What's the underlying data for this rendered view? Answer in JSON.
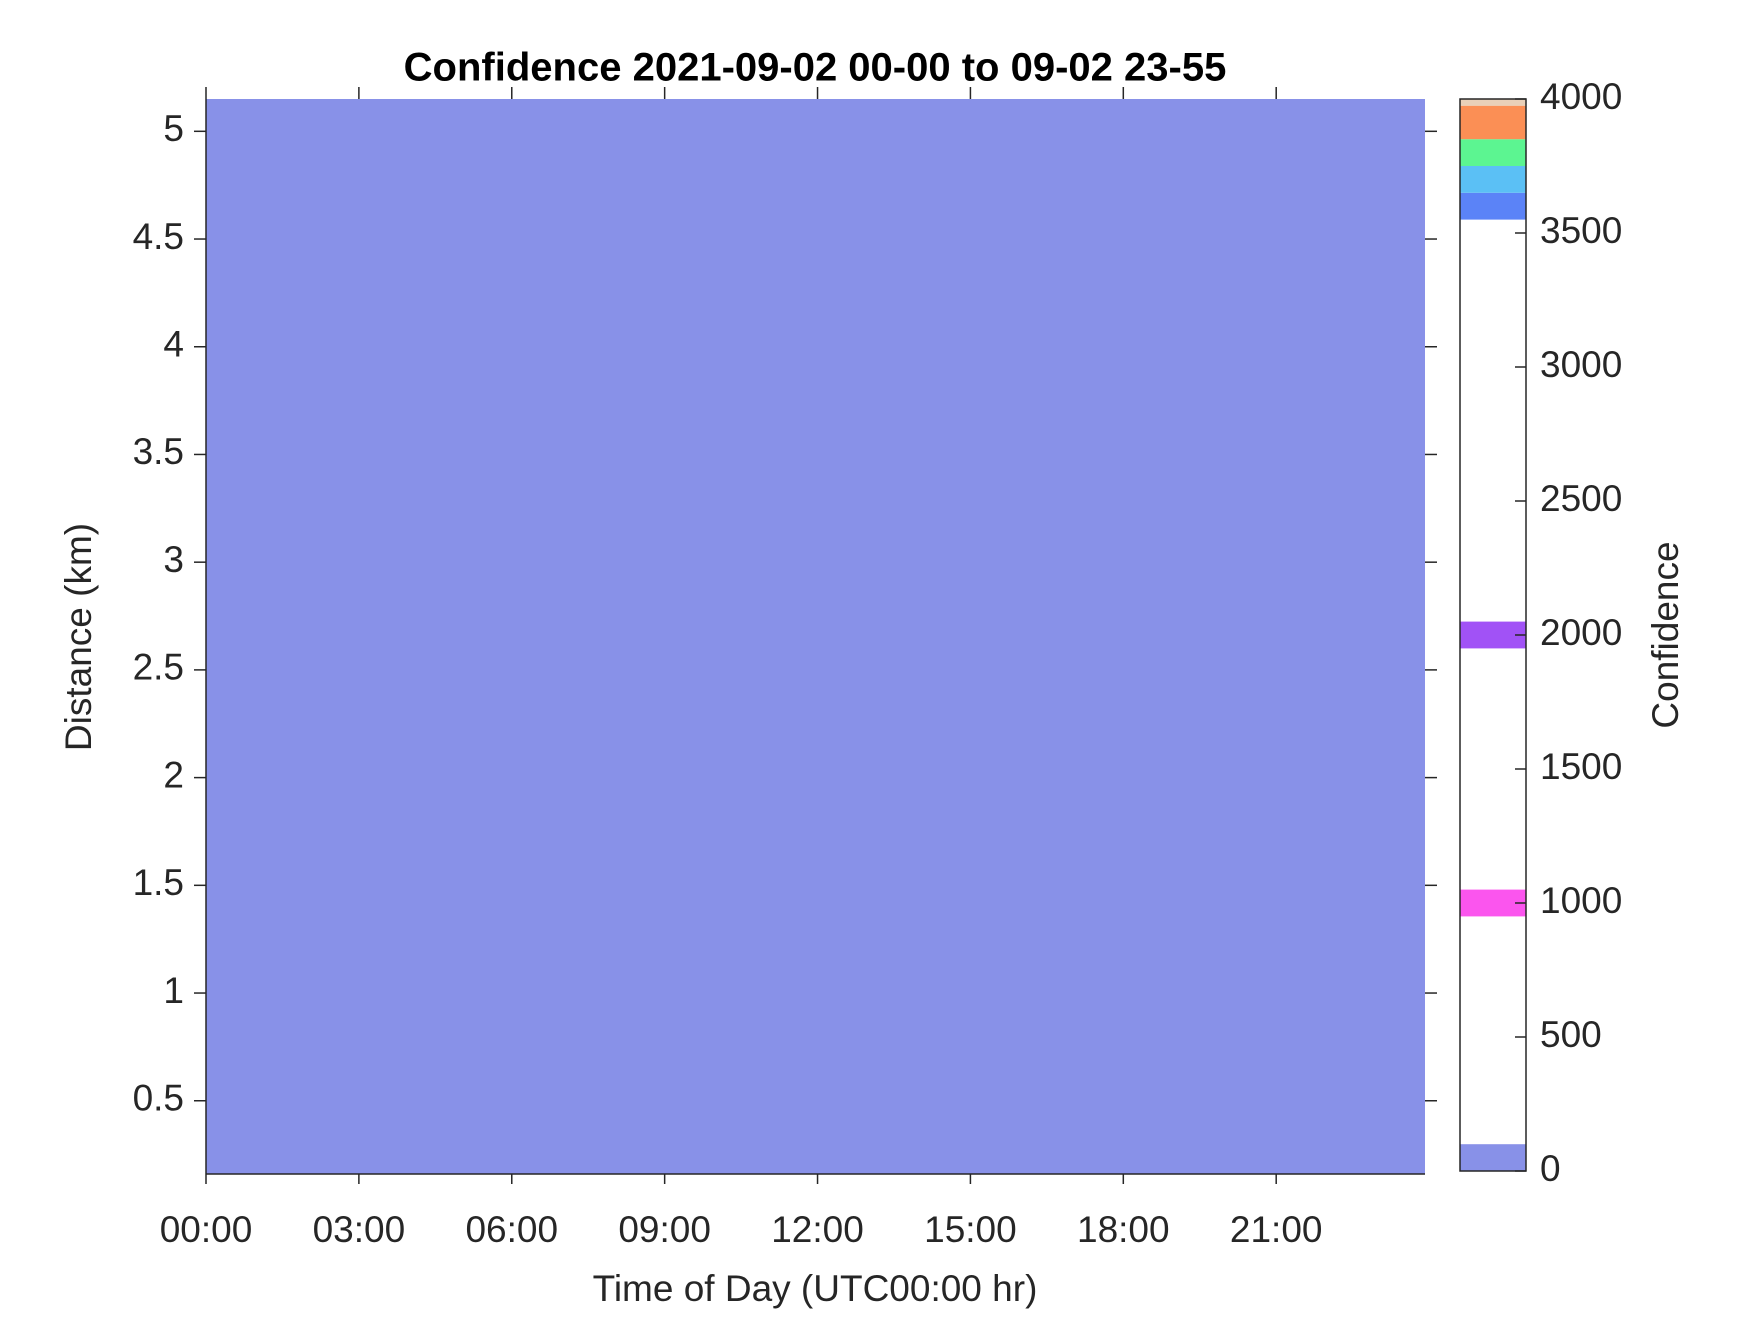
{
  "chart_data": {
    "type": "heatmap",
    "title": "Confidence 2021-09-02 00-00 to 09-02 23-55",
    "x_label": "Time of Day (UTC00:00 hr)",
    "y_label": "Distance (km)",
    "xlim": [
      0,
      23.92
    ],
    "ylim": [
      0.16,
      5.15
    ],
    "xticks": [
      {
        "value": 0,
        "label": "00:00"
      },
      {
        "value": 3,
        "label": "03:00"
      },
      {
        "value": 6,
        "label": "06:00"
      },
      {
        "value": 9,
        "label": "09:00"
      },
      {
        "value": 12,
        "label": "12:00"
      },
      {
        "value": 15,
        "label": "15:00"
      },
      {
        "value": 18,
        "label": "18:00"
      },
      {
        "value": 21,
        "label": "21:00"
      }
    ],
    "yticks": [
      0.5,
      1,
      1.5,
      2,
      2.5,
      3,
      3.5,
      4,
      4.5,
      5
    ],
    "value": 50,
    "color": "#8891e8",
    "colorbar": {
      "label": "Confidence",
      "lim": [
        0,
        4000
      ],
      "ticks": [
        0,
        500,
        1000,
        1500,
        2000,
        2500,
        3000,
        3500,
        4000
      ],
      "bands": [
        {
          "from": 0,
          "to": 100,
          "color": "#8891e8"
        },
        {
          "from": 950,
          "to": 1050,
          "color": "#fb55ee"
        },
        {
          "from": 1950,
          "to": 2050,
          "color": "#a152f6"
        },
        {
          "from": 3550,
          "to": 3650,
          "color": "#5b83f7"
        },
        {
          "from": 3650,
          "to": 3750,
          "color": "#5bc0f5"
        },
        {
          "from": 3750,
          "to": 3850,
          "color": "#5cf591"
        },
        {
          "from": 3850,
          "to": 3975,
          "color": "#fb8f55"
        },
        {
          "from": 3975,
          "to": 4000,
          "color": "#e9d0b8"
        }
      ]
    }
  }
}
